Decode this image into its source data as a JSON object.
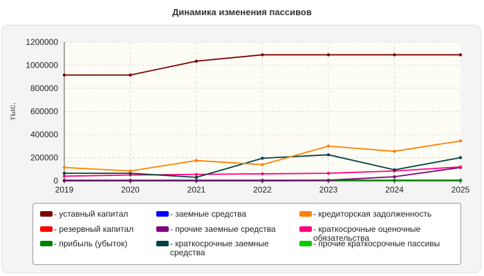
{
  "chart_data": {
    "type": "line",
    "title": "Динамика изменения пассивов",
    "ylabel": "тыс.",
    "xlabel": "",
    "ylim": [
      0,
      1200000
    ],
    "yticks": [
      "0",
      "200000",
      "400000",
      "600000",
      "800000",
      "1000000",
      "1200000"
    ],
    "categories": [
      "2019",
      "2020",
      "2021",
      "2022",
      "2023",
      "2024",
      "2025"
    ],
    "grid": true,
    "legend_position": "bottom",
    "series": [
      {
        "name": "- уставный капитал",
        "color": "#800000",
        "values": [
          915000,
          915000,
          1035000,
          1090000,
          1090000,
          1090000,
          1090000
        ]
      },
      {
        "name": "- резервный капитал",
        "color": "#ff0000",
        "values": [
          0,
          0,
          0,
          0,
          0,
          0,
          0
        ]
      },
      {
        "name": "- прибыль (убыток)",
        "color": "#008000",
        "values": [
          5000,
          5000,
          5000,
          5000,
          5000,
          5000,
          5000
        ]
      },
      {
        "name": "- заемные средства",
        "color": "#0000ff",
        "values": [
          0,
          0,
          0,
          0,
          0,
          0,
          0
        ]
      },
      {
        "name": "- прочие заемные средства",
        "color": "#800080",
        "values": [
          0,
          0,
          0,
          0,
          5000,
          35000,
          115000
        ]
      },
      {
        "name": "- краткосрочные заемные средства",
        "color": "#004040",
        "values": [
          65000,
          65000,
          30000,
          195000,
          225000,
          95000,
          200000
        ]
      },
      {
        "name": "- кредиторская задолженность",
        "color": "#ff8000",
        "values": [
          115000,
          85000,
          175000,
          140000,
          300000,
          255000,
          345000
        ]
      },
      {
        "name": "- краткосрочные оценочные обязательства",
        "color": "#ff0080",
        "values": [
          40000,
          50000,
          55000,
          60000,
          65000,
          85000,
          120000
        ]
      },
      {
        "name": "- прочие краткосрочные пассивы",
        "color": "#00cc00",
        "values": [
          0,
          0,
          0,
          0,
          0,
          0,
          0
        ]
      }
    ]
  }
}
